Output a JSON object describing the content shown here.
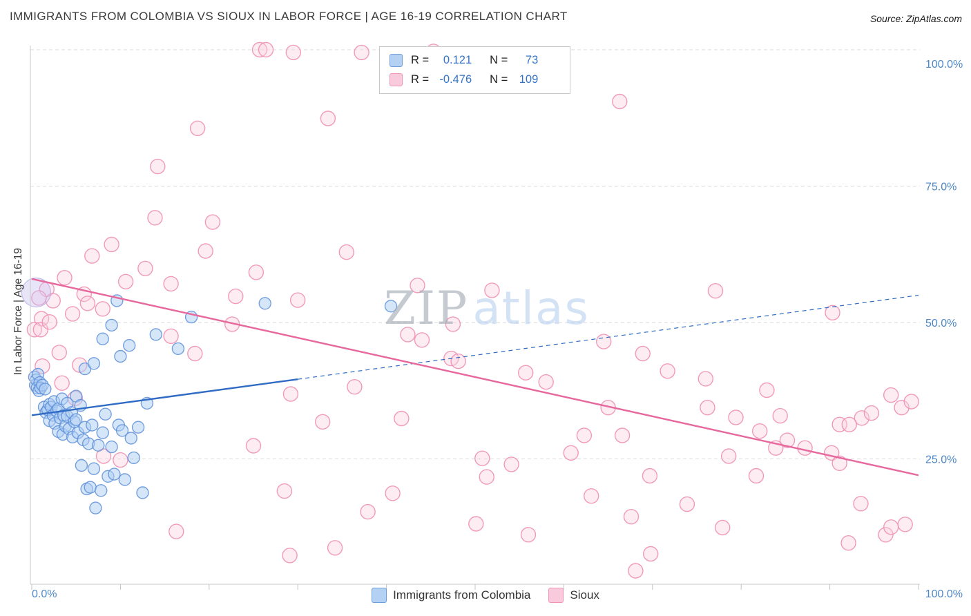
{
  "title": "IMMIGRANTS FROM COLOMBIA VS SIOUX IN LABOR FORCE | AGE 16-19 CORRELATION CHART",
  "source": "Source: ZipAtlas.com",
  "watermark": {
    "part1": "ZIP",
    "part2": "atlas"
  },
  "y_axis": {
    "label": "In Labor Force | Age 16-19",
    "ticks": [
      {
        "label": "100.0%",
        "value": 100
      },
      {
        "label": "75.0%",
        "value": 75
      },
      {
        "label": "50.0%",
        "value": 50
      },
      {
        "label": "25.0%",
        "value": 25
      }
    ]
  },
  "x_axis": {
    "min_label": "0.0%",
    "max_label": "100.0%",
    "tick_interval_percent": 10
  },
  "legend_box": {
    "series": [
      {
        "r_label": "R =",
        "r_value": "0.121",
        "n_label": "N =",
        "n_value": "73"
      },
      {
        "r_label": "R =",
        "r_value": "-0.476",
        "n_label": "N =",
        "n_value": "109"
      }
    ]
  },
  "bottom_legend": {
    "items": [
      {
        "label": "Immigrants from Colombia"
      },
      {
        "label": "Sioux"
      }
    ]
  },
  "colors": {
    "colombia_fill": "#aecdf4",
    "colombia_stroke": "#5e8fd8",
    "colombia_trend": "#2f6bc4",
    "sioux_fill": "#fbcfdf",
    "sioux_stroke": "#f08fb2",
    "sioux_trend": "#e7689c",
    "axis_label_blue": "#4d87c7",
    "stat_value_blue": "#3574c8",
    "gridline": "#dadada"
  },
  "chart_data": {
    "type": "scatter",
    "title": "IMMIGRANTS FROM COLOMBIA VS SIOUX IN LABOR FORCE | AGE 16-19 CORRELATION CHART",
    "xlabel": "",
    "ylabel": "In Labor Force | Age 16-19",
    "xlim": [
      0,
      100
    ],
    "ylim": [
      0,
      104
    ],
    "grid": "horizontal-dashed",
    "legend_position": "top-center and bottom-center",
    "series": [
      {
        "key": "colombia",
        "name": "Immigrants from Colombia",
        "R": 0.121,
        "N": 73,
        "marker_radius": 8.5,
        "trend": {
          "x1": 0,
          "y1": 33,
          "x2": 100,
          "y2": 55,
          "solid_until": 30
        },
        "points": [
          [
            0.3,
            40
          ],
          [
            0.4,
            38.5
          ],
          [
            0.5,
            39.5
          ],
          [
            0.6,
            38
          ],
          [
            0.7,
            40.5
          ],
          [
            0.8,
            37.5
          ],
          [
            0.9,
            39
          ],
          [
            1,
            38
          ],
          [
            1.2,
            38.5
          ],
          [
            1.4,
            34.5
          ],
          [
            1.5,
            37.8
          ],
          [
            1.6,
            33.5
          ],
          [
            1.8,
            34
          ],
          [
            2,
            35
          ],
          [
            2,
            32
          ],
          [
            2.2,
            34.5
          ],
          [
            2.4,
            33
          ],
          [
            2.5,
            35.5
          ],
          [
            2.6,
            31.5
          ],
          [
            2.8,
            33.8
          ],
          [
            3,
            34.2
          ],
          [
            3,
            30
          ],
          [
            3.2,
            32.5
          ],
          [
            3.4,
            36
          ],
          [
            3.5,
            29.5
          ],
          [
            3.6,
            33
          ],
          [
            3.8,
            31
          ],
          [
            4,
            35.2
          ],
          [
            4,
            32.8
          ],
          [
            4.2,
            30.5
          ],
          [
            4.5,
            33.5
          ],
          [
            4.6,
            29
          ],
          [
            4.8,
            31.8
          ],
          [
            5,
            36.5
          ],
          [
            5,
            32.2
          ],
          [
            5.2,
            29.8
          ],
          [
            5.5,
            34.8
          ],
          [
            5.6,
            23.8
          ],
          [
            5.8,
            28.5
          ],
          [
            6,
            41.5
          ],
          [
            6,
            30.8
          ],
          [
            6.2,
            19.5
          ],
          [
            6.4,
            27.8
          ],
          [
            6.6,
            19.8
          ],
          [
            6.8,
            31.2
          ],
          [
            7,
            42.5
          ],
          [
            7,
            23.2
          ],
          [
            7.2,
            16
          ],
          [
            7.5,
            27.5
          ],
          [
            7.8,
            19.2
          ],
          [
            8,
            47
          ],
          [
            8,
            29.8
          ],
          [
            8.3,
            33.2
          ],
          [
            8.6,
            21.8
          ],
          [
            9,
            49.5
          ],
          [
            9,
            27.2
          ],
          [
            9.3,
            22.2
          ],
          [
            9.6,
            54
          ],
          [
            9.8,
            31.2
          ],
          [
            10,
            43.8
          ],
          [
            10.2,
            30.2
          ],
          [
            10.5,
            21.2
          ],
          [
            11,
            45.8
          ],
          [
            11.2,
            28.8
          ],
          [
            11.5,
            25.2
          ],
          [
            12,
            30.8
          ],
          [
            12.5,
            18.8
          ],
          [
            13,
            35.2
          ],
          [
            14,
            47.8
          ],
          [
            16.5,
            45.2
          ],
          [
            18,
            51
          ],
          [
            26.3,
            53.5
          ],
          [
            40.5,
            53
          ]
        ]
      },
      {
        "key": "sioux",
        "name": "Sioux",
        "R": -0.476,
        "N": 109,
        "marker_radius": 10.5,
        "trend": {
          "x1": 0,
          "y1": 58,
          "x2": 100,
          "y2": 22
        },
        "points": [
          [
            25.7,
            100
          ],
          [
            26.4,
            100
          ],
          [
            29.5,
            99.5
          ],
          [
            37.2,
            99.5
          ],
          [
            45.3,
            99.7
          ],
          [
            66.3,
            90.5
          ],
          [
            18.7,
            85.6
          ],
          [
            33.4,
            87.4
          ],
          [
            14.2,
            78.6
          ],
          [
            13.9,
            69.2
          ],
          [
            20.4,
            68.4
          ],
          [
            6.8,
            62.2
          ],
          [
            9.0,
            64.3
          ],
          [
            19.6,
            63.1
          ],
          [
            35.5,
            62.9
          ],
          [
            25.3,
            59.2
          ],
          [
            3.7,
            58.2
          ],
          [
            12.8,
            59.9
          ],
          [
            10.6,
            57.5
          ],
          [
            15.7,
            57.1
          ],
          [
            43.5,
            56.8
          ],
          [
            51.9,
            55.9
          ],
          [
            77.1,
            55.8
          ],
          [
            1.7,
            56.1
          ],
          [
            0.8,
            54.5
          ],
          [
            2.4,
            54.0
          ],
          [
            5.9,
            55.2
          ],
          [
            6.3,
            53.5
          ],
          [
            8.0,
            52.5
          ],
          [
            4.6,
            51.6
          ],
          [
            1.1,
            50.7
          ],
          [
            23.0,
            54.8
          ],
          [
            30.0,
            54.1
          ],
          [
            22.6,
            49.7
          ],
          [
            42.4,
            47.8
          ],
          [
            47.5,
            49.7
          ],
          [
            44.0,
            46.8
          ],
          [
            15.7,
            47.5
          ],
          [
            18.4,
            44.3
          ],
          [
            90.3,
            51.8
          ],
          [
            64.5,
            46.5
          ],
          [
            68.9,
            44.3
          ],
          [
            47.3,
            43.4
          ],
          [
            48.1,
            42.9
          ],
          [
            55.7,
            40.8
          ],
          [
            58.0,
            39.1
          ],
          [
            71.7,
            41.1
          ],
          [
            82.9,
            37.6
          ],
          [
            76.0,
            39.7
          ],
          [
            29.2,
            36.9
          ],
          [
            36.4,
            38.2
          ],
          [
            32.8,
            31.8
          ],
          [
            41.7,
            32.4
          ],
          [
            65.0,
            34.4
          ],
          [
            76.2,
            34.4
          ],
          [
            79.4,
            32.6
          ],
          [
            84.4,
            32.9
          ],
          [
            93.6,
            32.5
          ],
          [
            96.9,
            36.7
          ],
          [
            82.1,
            30.1
          ],
          [
            85.2,
            28.4
          ],
          [
            91.1,
            31.3
          ],
          [
            92.2,
            31.3
          ],
          [
            94.7,
            33.4
          ],
          [
            62.3,
            29.3
          ],
          [
            66.6,
            29.3
          ],
          [
            78.6,
            25.5
          ],
          [
            69.7,
            21.9
          ],
          [
            54.1,
            24.0
          ],
          [
            51.3,
            21.7
          ],
          [
            28.5,
            19.1
          ],
          [
            37.9,
            15.3
          ],
          [
            50.1,
            13.1
          ],
          [
            56.0,
            11.1
          ],
          [
            63.1,
            18.2
          ],
          [
            67.6,
            14.4
          ],
          [
            73.9,
            16.7
          ],
          [
            77.9,
            12.4
          ],
          [
            16.3,
            11.7
          ],
          [
            34.2,
            8.7
          ],
          [
            29.1,
            7.3
          ],
          [
            69.8,
            7.6
          ],
          [
            68.1,
            4.5
          ],
          [
            92.1,
            9.6
          ],
          [
            93.5,
            16.8
          ],
          [
            96.3,
            11.1
          ],
          [
            96.9,
            12.5
          ],
          [
            90.2,
            26.1
          ],
          [
            87.2,
            27.0
          ],
          [
            83.9,
            27.0
          ],
          [
            98.1,
            34.4
          ],
          [
            8.1,
            25.5
          ],
          [
            10.0,
            24.8
          ],
          [
            4.9,
            36.1
          ],
          [
            3.4,
            38.9
          ],
          [
            1.2,
            42.0
          ],
          [
            0.3,
            48.7
          ],
          [
            1.0,
            48.7
          ],
          [
            2.0,
            50.1
          ],
          [
            25.0,
            27.4
          ],
          [
            40.7,
            18.7
          ],
          [
            50.8,
            25.1
          ],
          [
            60.8,
            26.1
          ],
          [
            81.7,
            21.9
          ],
          [
            91.1,
            24.2
          ],
          [
            3.1,
            44.5
          ],
          [
            5.4,
            42.2
          ],
          [
            98.5,
            13.0
          ],
          [
            99.2,
            35.5
          ]
        ]
      }
    ],
    "large_bubble": {
      "x": 0.5,
      "y": 55.5,
      "r": 21
    }
  }
}
